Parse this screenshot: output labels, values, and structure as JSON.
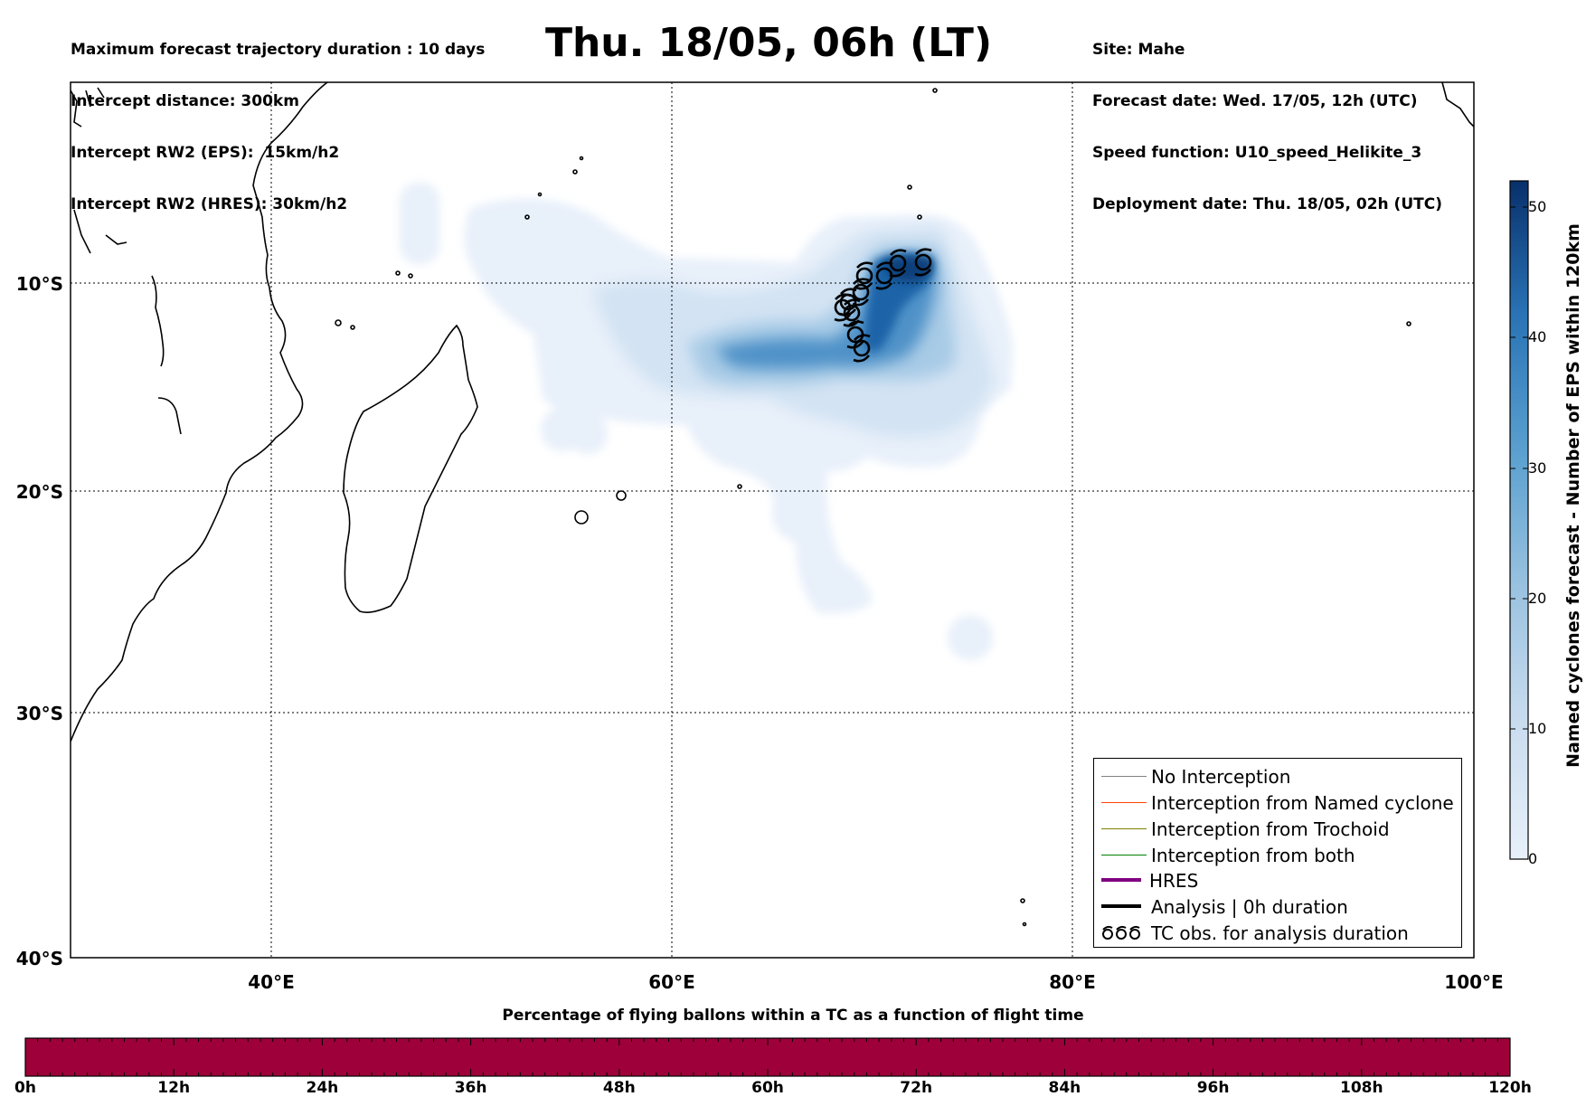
{
  "header": {
    "left_lines": [
      "Maximum forecast trajectory duration : 10 days",
      "Intercept distance: 300km",
      "Intercept RW2 (EPS):  15km/h2",
      "Intercept RW2 (HRES): 30km/h2"
    ],
    "title": "Thu. 18/05, 06h (LT)",
    "right_lines": [
      "Site: Mahe",
      "Forecast date: Wed. 17/05, 12h (UTC)",
      "Speed function: U10_speed_Helikite_3",
      "Deployment date: Thu. 18/05, 02h (UTC)"
    ]
  },
  "map": {
    "lon_range": [
      30,
      100
    ],
    "lat_range": [
      -40,
      1
    ],
    "lat_labels": [
      "10°S",
      "20°S",
      "30°S",
      "40°S"
    ],
    "lon_labels": [
      "40°E",
      "60°E",
      "80°E",
      "100°E"
    ],
    "density_color_scale": [
      "#e8f0fa",
      "#cfe0f2",
      "#a8cbe6",
      "#6faed6",
      "#3f8dc6",
      "#1f69ae",
      "#0c3f7a"
    ],
    "tc_symbol": "cyclone-icon"
  },
  "colorbar": {
    "label": "Named cyclones forecast - Number of EPS within 120km",
    "ticks": [
      "0",
      "10",
      "20",
      "30",
      "40",
      "50"
    ],
    "range": [
      0,
      52
    ],
    "colors": [
      "#e8f0fa",
      "#08306b"
    ]
  },
  "legend": {
    "items": [
      {
        "label": "No Interception",
        "color": "#808080",
        "icon": "thin-line"
      },
      {
        "label": "Interception from Named cyclone",
        "color": "#ff4500",
        "icon": "thin-line"
      },
      {
        "label": "Interception from Trochoid",
        "color": "#808000",
        "icon": "thin-line"
      },
      {
        "label": "Interception from both",
        "color": "#008000",
        "icon": "thin-line"
      },
      {
        "label": "HRES",
        "color": "#800080",
        "icon": "thick-line"
      },
      {
        "label": "Analysis | 0h duration",
        "color": "#000000",
        "icon": "thick-line"
      },
      {
        "label": "TC obs. for analysis duration",
        "color": "#000000",
        "icon": "cyclone-icon"
      }
    ]
  },
  "flight_bar": {
    "title": "Percentage of flying ballons within a TC as a function of flight time",
    "color": "#9e003a",
    "ticks": [
      "0h",
      "12h",
      "24h",
      "36h",
      "48h",
      "60h",
      "72h",
      "84h",
      "96h",
      "108h",
      "120h"
    ]
  }
}
